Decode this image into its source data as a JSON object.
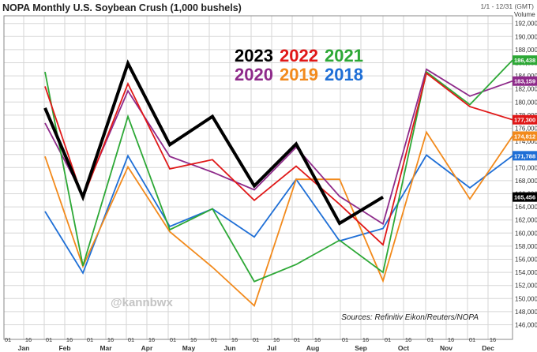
{
  "chart_data": {
    "type": "line",
    "title": "NOPA Monthly U.S. Soybean Crush (1,000 bushels)",
    "range_label": "1/1 - 12/31 (GMT)",
    "ylabel": "Volume",
    "ylim": [
      145000,
      193000
    ],
    "yticks": [
      146000,
      148000,
      150000,
      152000,
      154000,
      156000,
      158000,
      160000,
      162000,
      164000,
      166000,
      168000,
      170000,
      172000,
      174000,
      176000,
      178000,
      180000,
      182000,
      184000,
      186000,
      188000,
      190000,
      192000
    ],
    "ytick_labels": [
      "146,000",
      "148,000",
      "150,000",
      "152,000",
      "154,000",
      "156,000",
      "158,000",
      "160,000",
      "162,000",
      "164,000",
      "166,000",
      "168,000",
      "170,000",
      "172,000",
      "174,000",
      "176,000",
      "178,000",
      "180,000",
      "182,000",
      "184,000",
      "186,000",
      "188,000",
      "190,000",
      "192,000"
    ],
    "month_labels": [
      "Jan",
      "Feb",
      "Mar",
      "Apr",
      "May",
      "Jun",
      "Jul",
      "Aug",
      "Sep",
      "Oct",
      "Nov",
      "Dec"
    ],
    "day_labels": [
      "01",
      "16"
    ],
    "x_points": [
      "Jan 16",
      "Feb 16",
      "Mar 16",
      "Apr 16",
      "May 16",
      "Jun 16",
      "Jul 16",
      "Aug 16",
      "Sep 16",
      "Oct 16",
      "Nov 16",
      "Dec 16"
    ],
    "series": [
      {
        "name": "2018",
        "color": "#1f6fd6",
        "values": [
          163300,
          153900,
          171800,
          161000,
          163700,
          159400,
          168200,
          158800,
          160700,
          171900,
          166900,
          171800
        ],
        "flag": "171,788"
      },
      {
        "name": "2019",
        "color": "#f28a1c",
        "values": [
          171700,
          154900,
          170100,
          160200,
          154800,
          148900,
          168200,
          168200,
          152700,
          175400,
          165200,
          174800
        ],
        "flag": "174,812"
      },
      {
        "name": "2020",
        "color": "#8e2a8a",
        "values": [
          176800,
          165800,
          181700,
          171700,
          169300,
          166600,
          173100,
          165600,
          161400,
          185000,
          180900,
          183200
        ],
        "flag": "183,159"
      },
      {
        "name": "2021",
        "color": "#2da836",
        "values": [
          184600,
          155000,
          177800,
          160500,
          163700,
          152600,
          155200,
          158900,
          154000,
          184600,
          179600,
          186400
        ],
        "flag": "186,438"
      },
      {
        "name": "2022",
        "color": "#e01818",
        "values": [
          182400,
          165300,
          182800,
          169800,
          171200,
          165000,
          170200,
          164400,
          158200,
          184400,
          179300,
          177300
        ],
        "flag": "177,300"
      },
      {
        "name": "2023",
        "color": "#000000",
        "values": [
          179100,
          165500,
          185900,
          173500,
          177800,
          167200,
          173600,
          161500,
          165500
        ],
        "flag": "165,456"
      }
    ],
    "legend": {
      "row1": [
        {
          "text": "2023",
          "color": "#000000"
        },
        {
          "text": "2022",
          "color": "#e01818"
        },
        {
          "text": "2021",
          "color": "#2da836"
        }
      ],
      "row2": [
        {
          "text": "2020",
          "color": "#8e2a8a"
        },
        {
          "text": "2019",
          "color": "#f28a1c"
        },
        {
          "text": "2018",
          "color": "#1f6fd6"
        }
      ]
    },
    "source": "Sources: Refinitiv Eikon/Reuters/NOPA",
    "watermark": "@kannbwx",
    "grid": true
  }
}
